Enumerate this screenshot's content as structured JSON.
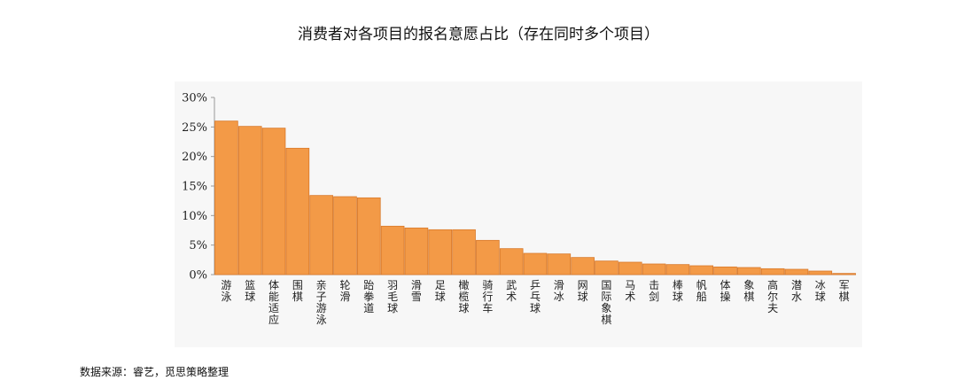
{
  "chart_data": {
    "type": "bar",
    "title": "消费者对各项目的报名意愿占比（存在同时多个项目）",
    "categories": [
      "游泳",
      "篮球",
      "体能适应",
      "围棋",
      "亲子游泳",
      "轮滑",
      "跆拳道",
      "羽毛球",
      "滑雪",
      "足球",
      "橄榄球",
      "骑行车",
      "武术",
      "乒乓球",
      "滑冰",
      "网球",
      "国际象棋",
      "马术",
      "击剑",
      "棒球",
      "帆船",
      "体操",
      "象棋",
      "高尔夫",
      "潜水",
      "冰球",
      "军棋"
    ],
    "values": [
      26.0,
      25.1,
      24.8,
      21.4,
      13.4,
      13.2,
      13.0,
      8.2,
      7.9,
      7.6,
      7.6,
      5.8,
      4.4,
      3.6,
      3.5,
      2.9,
      2.3,
      2.1,
      1.8,
      1.7,
      1.5,
      1.3,
      1.2,
      1.0,
      0.9,
      0.6,
      0.2
    ],
    "ylim": [
      0,
      30
    ],
    "yticks": [
      "0%",
      "5%",
      "10%",
      "15%",
      "20%",
      "25%",
      "30%"
    ],
    "bar_color": "#f39a47",
    "bar_edge_color": "#d9792a",
    "grid": false
  },
  "source": "数据来源：睿艺，觅思策略整理"
}
